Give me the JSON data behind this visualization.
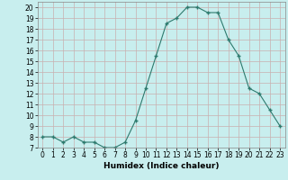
{
  "x": [
    0,
    1,
    2,
    3,
    4,
    5,
    6,
    7,
    8,
    9,
    10,
    11,
    12,
    13,
    14,
    15,
    16,
    17,
    18,
    19,
    20,
    21,
    22,
    23
  ],
  "y": [
    8,
    8,
    7.5,
    8,
    7.5,
    7.5,
    7,
    7,
    7.5,
    9.5,
    12.5,
    15.5,
    18.5,
    19,
    20,
    20,
    19.5,
    19.5,
    17,
    15.5,
    12.5,
    12,
    10.5,
    9
  ],
  "line_color": "#2d7a6e",
  "marker_color": "#2d7a6e",
  "bg_color": "#c8eeee",
  "grid_color": "#c8b0b0",
  "xlabel": "Humidex (Indice chaleur)",
  "xlim": [
    -0.5,
    23.5
  ],
  "ylim": [
    7,
    20.5
  ],
  "yticks": [
    7,
    8,
    9,
    10,
    11,
    12,
    13,
    14,
    15,
    16,
    17,
    18,
    19,
    20
  ],
  "xticks": [
    0,
    1,
    2,
    3,
    4,
    5,
    6,
    7,
    8,
    9,
    10,
    11,
    12,
    13,
    14,
    15,
    16,
    17,
    18,
    19,
    20,
    21,
    22,
    23
  ],
  "label_fontsize": 6.5,
  "tick_fontsize": 5.5
}
